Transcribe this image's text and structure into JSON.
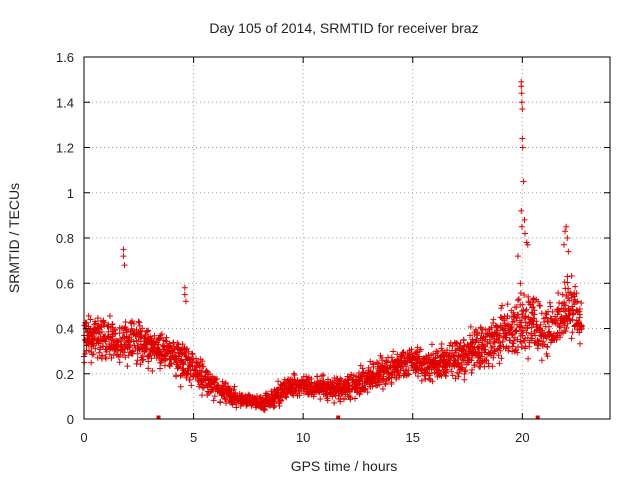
{
  "chart_data": {
    "type": "scatter",
    "title": "Day 105 of 2014, SRMTID for receiver braz",
    "xlabel": "GPS time / hours",
    "ylabel": "SRMTID / TECUs",
    "xlim": [
      0,
      24
    ],
    "ylim": [
      0,
      1.6
    ],
    "xticks": [
      "0",
      "5",
      "10",
      "15",
      "20"
    ],
    "yticks": [
      "0",
      "0.2",
      "0.4",
      "0.6",
      "0.8",
      "1",
      "1.2",
      "1.4",
      "1.6"
    ],
    "grid": true,
    "marker": "+",
    "color": "#e00000",
    "trend": {
      "x": [
        0,
        0.5,
        1,
        1.5,
        2,
        2.5,
        3,
        3.5,
        4,
        4.5,
        5,
        5.5,
        6,
        6.5,
        7,
        7.5,
        8,
        8.5,
        9,
        9.5,
        10,
        10.5,
        11,
        11.5,
        12,
        12.5,
        13,
        13.5,
        14,
        14.5,
        15,
        15.5,
        16,
        16.5,
        17,
        17.5,
        18,
        18.5,
        19,
        19.5,
        20,
        20.5,
        21,
        21.5,
        22,
        22.5,
        22.7
      ],
      "y": [
        0.36,
        0.37,
        0.36,
        0.33,
        0.35,
        0.34,
        0.32,
        0.3,
        0.27,
        0.25,
        0.22,
        0.18,
        0.14,
        0.11,
        0.09,
        0.08,
        0.07,
        0.08,
        0.12,
        0.15,
        0.15,
        0.14,
        0.14,
        0.13,
        0.14,
        0.16,
        0.18,
        0.2,
        0.22,
        0.24,
        0.25,
        0.24,
        0.24,
        0.25,
        0.27,
        0.29,
        0.31,
        0.33,
        0.36,
        0.4,
        0.43,
        0.42,
        0.38,
        0.4,
        0.5,
        0.46,
        0.4
      ],
      "spread": [
        0.1,
        0.1,
        0.1,
        0.09,
        0.12,
        0.1,
        0.09,
        0.08,
        0.09,
        0.1,
        0.08,
        0.07,
        0.06,
        0.05,
        0.04,
        0.03,
        0.03,
        0.04,
        0.05,
        0.05,
        0.05,
        0.05,
        0.05,
        0.05,
        0.06,
        0.06,
        0.07,
        0.07,
        0.07,
        0.07,
        0.07,
        0.08,
        0.08,
        0.09,
        0.09,
        0.1,
        0.1,
        0.11,
        0.13,
        0.15,
        0.17,
        0.15,
        0.12,
        0.13,
        0.14,
        0.12,
        0.1
      ]
    },
    "highlights": [
      {
        "x": 1.8,
        "y": 0.75
      },
      {
        "x": 1.8,
        "y": 0.72
      },
      {
        "x": 1.85,
        "y": 0.68
      },
      {
        "x": 4.6,
        "y": 0.58
      },
      {
        "x": 4.6,
        "y": 0.55
      },
      {
        "x": 4.65,
        "y": 0.52
      },
      {
        "x": 19.95,
        "y": 1.49
      },
      {
        "x": 19.95,
        "y": 1.47
      },
      {
        "x": 19.97,
        "y": 1.44
      },
      {
        "x": 19.98,
        "y": 1.4
      },
      {
        "x": 20.0,
        "y": 1.37
      },
      {
        "x": 20.0,
        "y": 1.24
      },
      {
        "x": 20.02,
        "y": 1.2
      },
      {
        "x": 20.05,
        "y": 1.05
      },
      {
        "x": 19.95,
        "y": 0.92
      },
      {
        "x": 20.1,
        "y": 0.88
      },
      {
        "x": 19.98,
        "y": 0.85
      },
      {
        "x": 20.12,
        "y": 0.82
      },
      {
        "x": 20.2,
        "y": 0.78
      },
      {
        "x": 20.25,
        "y": 0.77
      },
      {
        "x": 19.8,
        "y": 0.72
      },
      {
        "x": 22.0,
        "y": 0.85
      },
      {
        "x": 21.95,
        "y": 0.83
      },
      {
        "x": 22.05,
        "y": 0.8
      },
      {
        "x": 21.9,
        "y": 0.77
      },
      {
        "x": 22.1,
        "y": 0.74
      }
    ],
    "zeros": [
      {
        "x": 3.4,
        "y": 0
      },
      {
        "x": 11.6,
        "y": 0
      },
      {
        "x": 20.7,
        "y": 0
      }
    ]
  }
}
